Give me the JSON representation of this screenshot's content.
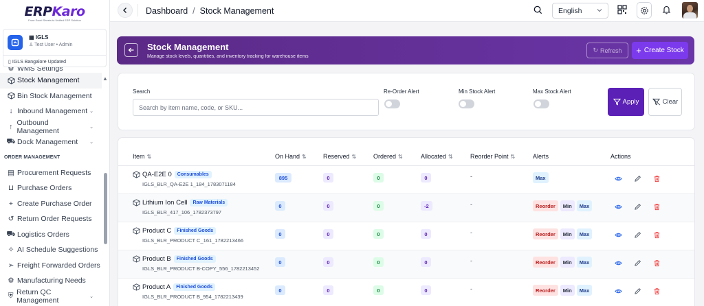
{
  "brand": {
    "name_part1": "ERP",
    "name_part2": "Karo",
    "tagline": "From Excel Sheets to Unified ERP Solution"
  },
  "org": {
    "name": "IGLS",
    "user": "Test User • Admin",
    "location": "IGLS Bangalore Updated"
  },
  "sidebar": {
    "items_top": [
      {
        "label": "WMS Settings",
        "icon": "settings-icon"
      },
      {
        "label": "Stock Management",
        "icon": "cube-icon",
        "active": true
      },
      {
        "label": "Bin Stock Management",
        "icon": "cube-icon"
      },
      {
        "label": "Inbound Management",
        "icon": "arrow-down-icon",
        "expandable": true
      },
      {
        "label": "Outbound Management",
        "icon": "arrow-up-icon",
        "expandable": true
      },
      {
        "label": "Dock Management",
        "icon": "truck-icon",
        "expandable": true
      }
    ],
    "section": "ORDER MANAGEMENT",
    "items_orders": [
      {
        "label": "Procurement Requests",
        "icon": "document-icon"
      },
      {
        "label": "Purchase Orders",
        "icon": "cart-icon"
      },
      {
        "label": "Create Purchase Order",
        "icon": "plus-icon"
      },
      {
        "label": "Return Order Requests",
        "icon": "return-icon"
      },
      {
        "label": "Logistics Orders",
        "icon": "truck-icon"
      },
      {
        "label": "AI Schedule Suggestions",
        "icon": "sparkle-icon"
      },
      {
        "label": "Freight Forwarded Orders",
        "icon": "send-icon"
      },
      {
        "label": "Manufacturing Needs",
        "icon": "gear-icon"
      },
      {
        "label": "Return QC Management",
        "icon": "shield-icon",
        "expandable": true
      }
    ]
  },
  "topbar": {
    "breadcrumb": [
      "Dashboard",
      "Stock Management"
    ],
    "language": "English"
  },
  "header": {
    "title": "Stock Management",
    "subtitle": "Manage stock levels, quantities, and inventory tracking for warehouse items",
    "refresh_label": "Refresh",
    "create_label": "Create Stock"
  },
  "filters": {
    "search_label": "Search",
    "search_placeholder": "Search by item name, code, or SKU...",
    "reorder_label": "Re-Order Alert",
    "min_label": "Min Stock Alert",
    "max_label": "Max Stock Alert",
    "apply_label": "Apply",
    "clear_label": "Clear"
  },
  "table": {
    "columns": [
      "Item",
      "On Hand",
      "Reserved",
      "Ordered",
      "Allocated",
      "Reorder Point",
      "Alerts",
      "Actions"
    ],
    "rows": [
      {
        "name": "QA-E2E 0",
        "category": "Consumables",
        "sku": "IGLS_BLR_QA-E2E 1_184_1783071184",
        "on_hand": "895",
        "reserved": "0",
        "ordered": "0",
        "allocated": "0",
        "reorder_point": "-",
        "alerts": [
          "Max"
        ]
      },
      {
        "name": "Lithium Ion Cell",
        "category": "Raw Materials",
        "sku": "IGLS_BLR_417_106_1782373797",
        "on_hand": "0",
        "reserved": "0",
        "ordered": "0",
        "allocated": "-2",
        "reorder_point": "-",
        "alerts": [
          "Reorder",
          "Min",
          "Max"
        ]
      },
      {
        "name": "Product C",
        "category": "Finished Goods",
        "sku": "IGLS_BLR_PRODUCT C_161_1782213466",
        "on_hand": "0",
        "reserved": "0",
        "ordered": "0",
        "allocated": "0",
        "reorder_point": "-",
        "alerts": [
          "Reorder",
          "Min",
          "Max"
        ]
      },
      {
        "name": "Product B",
        "category": "Finished Goods",
        "sku": "IGLS_BLR_PRODUCT B-COPY_556_1782213452",
        "on_hand": "0",
        "reserved": "0",
        "ordered": "0",
        "allocated": "0",
        "reorder_point": "-",
        "alerts": [
          "Reorder",
          "Min",
          "Max"
        ]
      },
      {
        "name": "Product A",
        "category": "Finished Goods",
        "sku": "IGLS_BLR_PRODUCT B_954_1782213439",
        "on_hand": "0",
        "reserved": "0",
        "ordered": "0",
        "allocated": "0",
        "reorder_point": "-",
        "alerts": [
          "Reorder",
          "Min",
          "Max"
        ]
      }
    ]
  },
  "colors": {
    "primary": "#5b21b6",
    "banner": "#6a35a8",
    "danger": "#ef4444",
    "info": "#2563eb"
  }
}
